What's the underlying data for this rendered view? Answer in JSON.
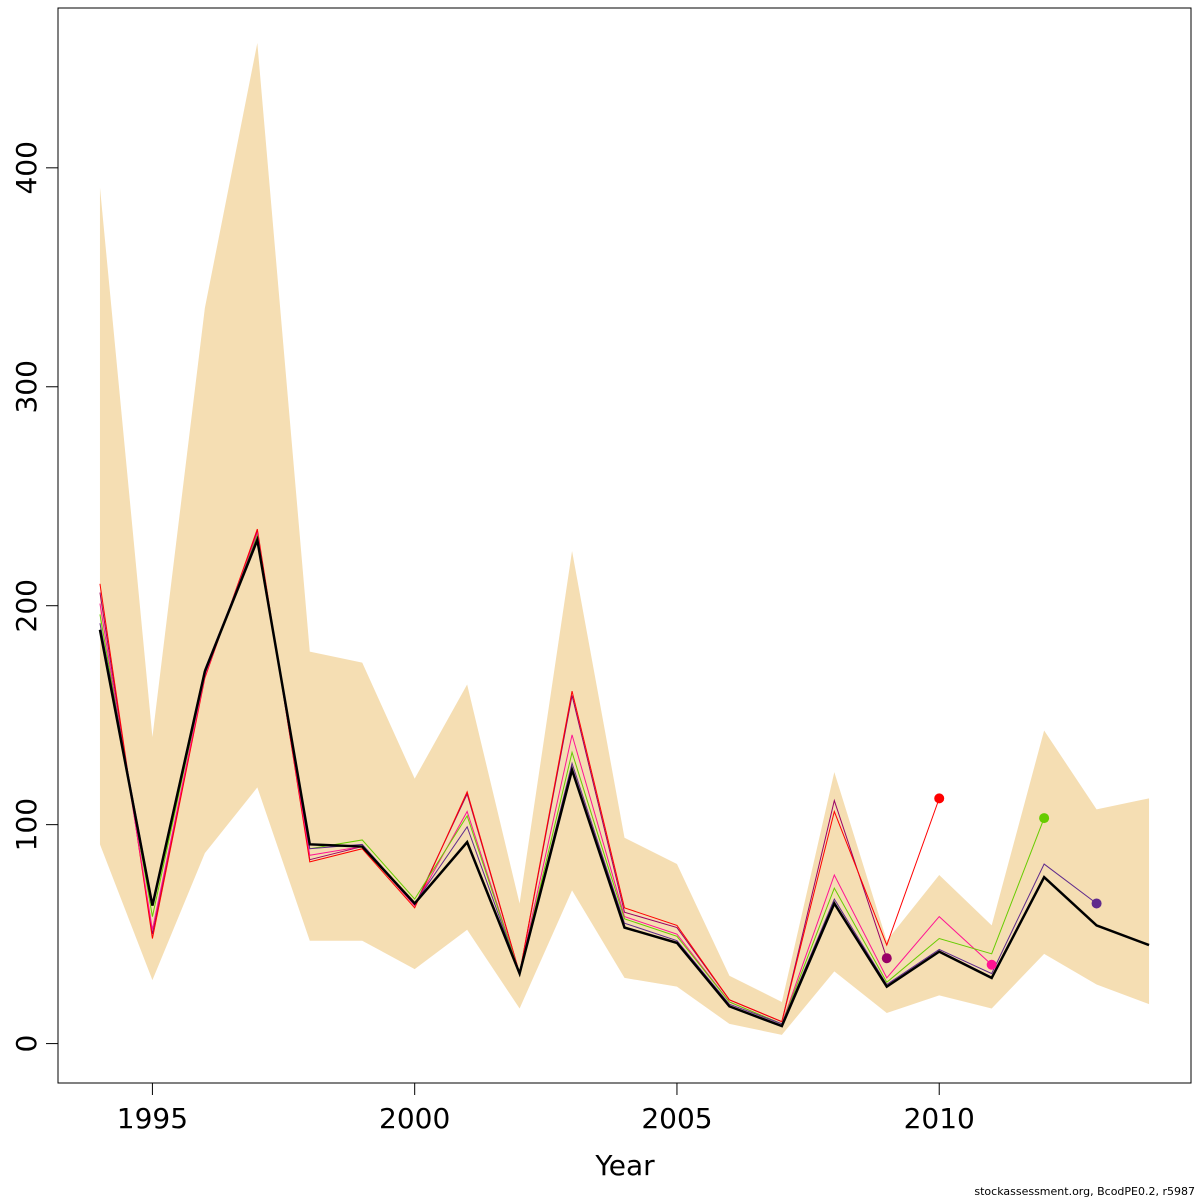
{
  "chart_data": {
    "type": "line",
    "xlabel": "Year",
    "ylabel": "",
    "xlim": [
      1993.2,
      2014.8
    ],
    "ylim": [
      -18,
      473
    ],
    "x_ticks": [
      1995,
      2000,
      2005,
      2010
    ],
    "y_ticks": [
      0,
      100,
      200,
      300,
      400
    ],
    "grid": false,
    "legend": "none",
    "credit": "stockassessment.org, BcodPE0.2, r5987",
    "band": {
      "color": "#F5DEB3",
      "x": [
        1994,
        1995,
        1996,
        1997,
        1998,
        1999,
        2000,
        2001,
        2002,
        2003,
        2004,
        2005,
        2006,
        2007,
        2008,
        2009,
        2010,
        2011,
        2012,
        2013,
        2014
      ],
      "upper": [
        391,
        140,
        336,
        457,
        179,
        174,
        121,
        164,
        64,
        225,
        94,
        82,
        31,
        19,
        124,
        47,
        77,
        54,
        143,
        107,
        112
      ],
      "lower": [
        91,
        29,
        87,
        117,
        47,
        47,
        34,
        52,
        16,
        70,
        30,
        26,
        9,
        4,
        33,
        14,
        22,
        16,
        41,
        27,
        18
      ]
    },
    "series": [
      {
        "color": "#000000",
        "width": 2.5,
        "x": [
          1994,
          1995,
          1996,
          1997,
          1998,
          1999,
          2000,
          2001,
          2002,
          2003,
          2004,
          2005,
          2006,
          2007,
          2008,
          2009,
          2010,
          2011,
          2012,
          2013,
          2014
        ],
        "values": [
          189,
          63,
          170,
          230,
          91,
          90,
          64,
          92,
          32,
          125,
          53,
          46,
          17,
          8,
          64,
          26,
          42,
          30,
          76,
          54,
          45
        ]
      },
      {
        "color": "#5F2A8C",
        "width": 1,
        "x": [
          1994,
          1995,
          1996,
          1997,
          1998,
          1999,
          2000,
          2001,
          2002,
          2003,
          2004,
          2005,
          2006,
          2007,
          2008,
          2009,
          2010,
          2011,
          2012,
          2013
        ],
        "values": [
          192,
          64,
          171,
          231,
          89,
          91,
          64,
          99,
          32,
          128,
          55,
          47,
          18,
          9,
          66,
          27,
          43,
          32,
          82,
          64
        ],
        "end_point": true
      },
      {
        "color": "#66CC00",
        "width": 1,
        "x": [
          1994,
          1995,
          1996,
          1997,
          1998,
          1999,
          2000,
          2001,
          2002,
          2003,
          2004,
          2005,
          2006,
          2007,
          2008,
          2009,
          2010,
          2011,
          2012
        ],
        "values": [
          196,
          58,
          169,
          232,
          89,
          93,
          66,
          104,
          32,
          133,
          57,
          49,
          19,
          9,
          71,
          28,
          48,
          41,
          103
        ],
        "end_point": true
      },
      {
        "color": "#FF1493",
        "width": 1,
        "x": [
          1994,
          1995,
          1996,
          1997,
          1998,
          1999,
          2000,
          2001,
          2002,
          2003,
          2004,
          2005,
          2006,
          2007,
          2008,
          2009,
          2010,
          2011
        ],
        "values": [
          201,
          52,
          168,
          233,
          86,
          90,
          63,
          106,
          32,
          141,
          58,
          50,
          19,
          9,
          77,
          30,
          58,
          36
        ],
        "end_point": true
      },
      {
        "color": "#FF0000",
        "width": 1,
        "x": [
          1994,
          1995,
          1996,
          1997,
          1998,
          1999,
          2000,
          2001,
          2002,
          2003,
          2004,
          2005,
          2006,
          2007,
          2008,
          2009,
          2010
        ],
        "values": [
          210,
          48,
          167,
          235,
          83,
          89,
          62,
          115,
          32,
          161,
          62,
          54,
          20,
          10,
          106,
          45,
          112
        ],
        "end_point": true
      },
      {
        "color": "#990066",
        "width": 1,
        "x": [
          1994,
          1995,
          1996,
          1997,
          1998,
          1999,
          2000,
          2001,
          2002,
          2003,
          2004,
          2005,
          2006,
          2007,
          2008,
          2009
        ],
        "values": [
          206,
          50,
          168,
          234,
          84,
          90,
          63,
          114,
          32,
          159,
          60,
          53,
          20,
          10,
          111,
          39
        ],
        "end_point": true
      }
    ]
  }
}
